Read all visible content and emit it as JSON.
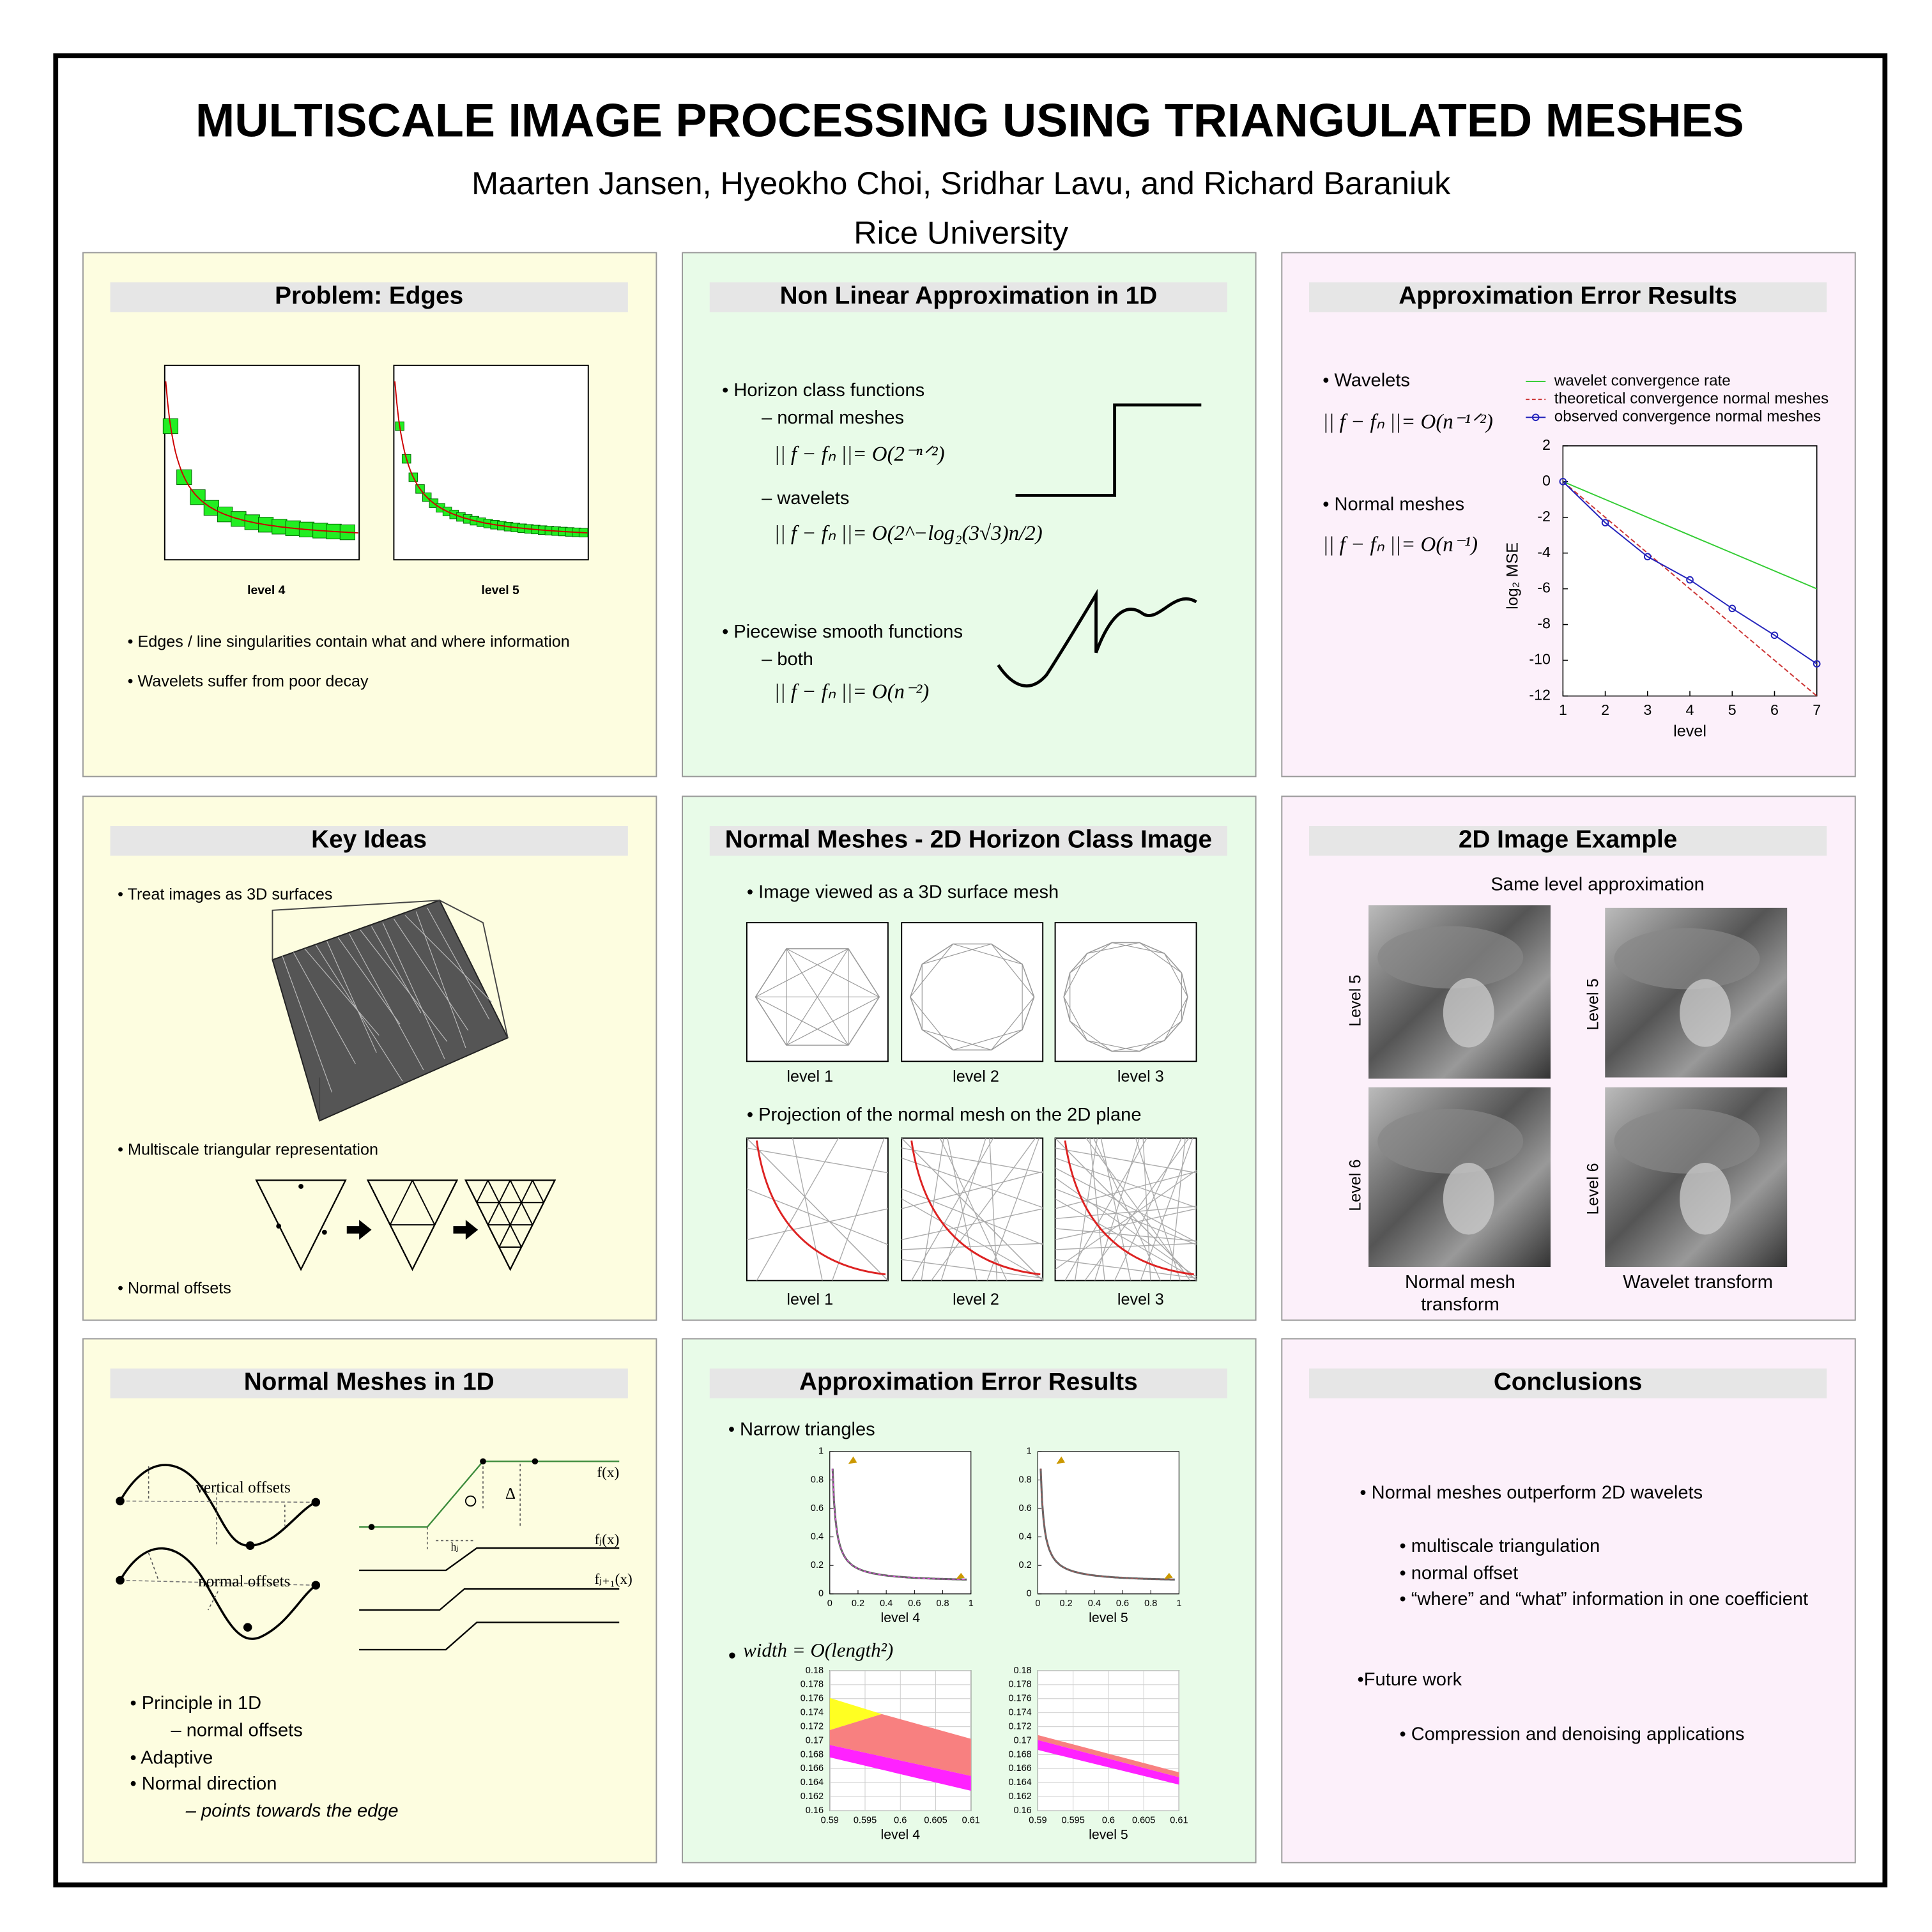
{
  "header": {
    "title": "MULTISCALE IMAGE PROCESSING USING TRIANGULATED MESHES",
    "authors": "Maarten Jansen, Hyeokho Choi, Sridhar Lavu, and Richard Baraniuk",
    "affiliation": "Rice University"
  },
  "panels": [
    {
      "heading": "Problem: Edges",
      "items": [
        "level 4",
        "level 5",
        "• Edges / line singularities contain what and where information",
        "• Wavelets suffer from poor decay"
      ]
    },
    {
      "heading": "Non Linear Approximation in 1D",
      "items": [
        "• Horizon class functions",
        "– normal meshes",
        "|| f − fₙ ||= O(2⁻ⁿᐟ²)",
        "– wavelets",
        "|| f − fₙ ||= O(2^−log₂(3√3)n/2)",
        "• Piecewise smooth functions",
        "– both",
        "|| f − fₙ ||= O(n⁻²)"
      ]
    },
    {
      "heading": "Approximation Error Results",
      "items": [
        "• Wavelets",
        "|| f − fₙ ||= O(n⁻¹ᐟ²)",
        "• Normal meshes",
        "|| f − fₙ ||= O(n⁻¹)"
      ]
    },
    {
      "heading": "Key Ideas",
      "items": [
        "• Treat images as 3D surfaces",
        "• Multiscale triangular representation",
        "• Normal offsets"
      ]
    },
    {
      "heading": "Normal Meshes - 2D Horizon Class Image",
      "items": [
        "• Image viewed as a 3D surface mesh",
        "level 1",
        "level 2",
        "level 3",
        "• Projection of the normal mesh on the 2D plane",
        "level 1",
        "level 2",
        "level 3"
      ]
    },
    {
      "heading": "2D Image Example",
      "items": [
        "Same level approximation",
        "Level 5",
        "Level 5",
        "Level 6",
        "Level 6",
        "Normal mesh",
        "transform",
        "Wavelet transform"
      ]
    },
    {
      "heading": "Normal Meshes in 1D",
      "items": [
        "vertical offsets",
        "normal offsets",
        "f(x)",
        "Δ",
        "hⱼ",
        "fⱼ(x)",
        "fⱼ₊₁(x)",
        "• Principle in 1D",
        "– normal offsets",
        "• Adaptive",
        "• Normal direction",
        "– points towards the edge"
      ]
    },
    {
      "heading": "Approximation Error Results",
      "items": [
        "• Narrow triangles",
        "•",
        "width = O(length²)"
      ]
    },
    {
      "heading": "Conclusions",
      "items": [
        "• Normal meshes outperform 2D wavelets",
        "• multiscale triangulation",
        "• normal offset",
        "• “where” and “what” information in one coefficient",
        "•Future work",
        "• Compression and denoising applications"
      ]
    }
  ],
  "chart_data": [
    {
      "type": "line",
      "x": [
        1,
        2,
        3,
        4,
        5,
        6,
        7
      ],
      "series": [
        {
          "name": "wavelet convergence rate",
          "color": "#33cc33",
          "values": [
            0,
            -1,
            -2,
            -3,
            -4,
            -5,
            -6
          ]
        },
        {
          "name": "theoretical convergence normal meshes",
          "color": "#cc3333",
          "linestyle": "dashed",
          "values": [
            0,
            -2,
            -4,
            -6,
            -8,
            -10,
            -12
          ]
        },
        {
          "name": "observed convergence normal meshes",
          "color": "#2222bb",
          "marker": "o",
          "values": [
            0,
            -2.3,
            -4.2,
            -5.5,
            -7.1,
            -8.6,
            -10.2
          ]
        }
      ],
      "xlim": [
        1,
        7
      ],
      "ylim": [
        -12,
        2
      ],
      "xticks": [
        1,
        2,
        3,
        4,
        5,
        6,
        7
      ],
      "yticks": [
        2,
        0,
        -2,
        -4,
        -6,
        -8,
        -10,
        -12
      ],
      "x_label": "level",
      "y_label": "log₂ MSE"
    },
    {
      "type": "plot",
      "label": "level 4",
      "xlim": [
        0,
        1
      ],
      "ylim": [
        0,
        1
      ],
      "xticks": [
        0,
        0.2,
        0.4,
        0.6,
        0.8,
        1
      ],
      "yticks": [
        0,
        0.2,
        0.4,
        0.6,
        0.8,
        1
      ]
    },
    {
      "type": "plot",
      "label": "level 5",
      "xlim": [
        0,
        1
      ],
      "ylim": [
        0,
        1
      ],
      "xticks": [
        0,
        0.2,
        0.4,
        0.6,
        0.8,
        1
      ],
      "yticks": [
        0,
        0.2,
        0.4,
        0.6,
        0.8,
        1
      ]
    },
    {
      "type": "plot",
      "label": "level 4",
      "grid": true,
      "xlim": [
        0.59,
        0.61
      ],
      "ylim": [
        0.16,
        0.18
      ],
      "xticks": [
        0.59,
        0.595,
        0.6,
        0.605,
        0.61
      ],
      "yticks": [
        0.16,
        0.162,
        0.164,
        0.166,
        0.168,
        0.17,
        0.172,
        0.174,
        0.176,
        0.178,
        0.18
      ]
    },
    {
      "type": "plot",
      "label": "level 5",
      "grid": true,
      "xlim": [
        0.59,
        0.61
      ],
      "ylim": [
        0.16,
        0.18
      ],
      "xticks": [
        0.59,
        0.595,
        0.6,
        0.605,
        0.61
      ],
      "yticks": [
        0.16,
        0.162,
        0.164,
        0.166,
        0.168,
        0.17,
        0.172,
        0.174,
        0.176,
        0.178,
        0.18
      ]
    }
  ]
}
